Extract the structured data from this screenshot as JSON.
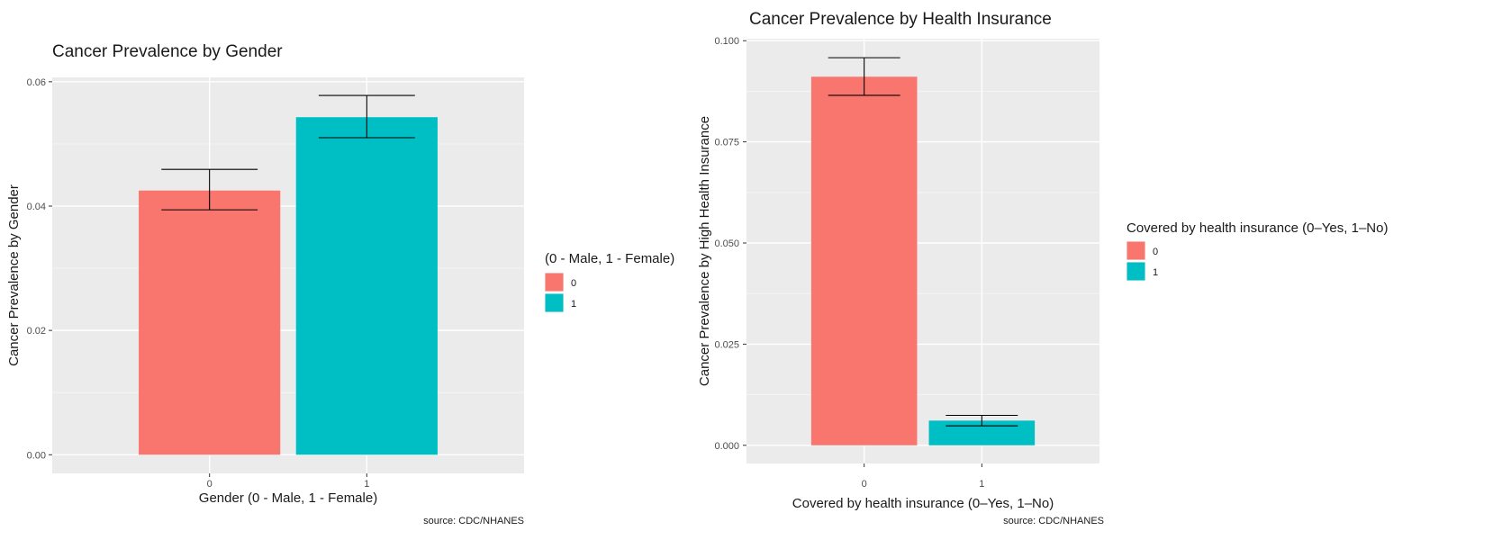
{
  "chart_data": [
    {
      "type": "bar",
      "title": "Cancer Prevalence by Gender",
      "xlabel": "Gender (0 - Male, 1 - Female)",
      "ylabel": "Cancer Prevalence by Gender",
      "categories": [
        "0",
        "1"
      ],
      "values": [
        0.0425,
        0.0543
      ],
      "error_bars": [
        {
          "low": 0.0394,
          "high": 0.0459
        },
        {
          "low": 0.051,
          "high": 0.0578
        }
      ],
      "ylim": [
        -0.003,
        0.0607
      ],
      "yticks": [
        0.0,
        0.02,
        0.04,
        0.06
      ],
      "yticklabels": [
        "0.00",
        "0.02",
        "0.04",
        "0.06"
      ],
      "grid": true,
      "legend": {
        "title": "(0 - Male, 1 - Female)",
        "position": "right",
        "entries": [
          "0",
          "1"
        ]
      },
      "colors": [
        "#F8766D",
        "#00BFC4"
      ],
      "caption": "source: CDC/NHANES"
    },
    {
      "type": "bar",
      "title": "Cancer Prevalence by Health Insurance",
      "xlabel": "Covered by health insurance (0–Yes, 1–No)",
      "ylabel": "Cancer Prevalence by High Health Insurance",
      "categories": [
        "0",
        "1"
      ],
      "values": [
        0.0911,
        0.0061
      ],
      "error_bars": [
        {
          "low": 0.0865,
          "high": 0.0958
        },
        {
          "low": 0.0048,
          "high": 0.0074
        }
      ],
      "ylim": [
        -0.0045,
        0.1005
      ],
      "yticks": [
        0.0,
        0.025,
        0.05,
        0.075,
        0.1
      ],
      "yticklabels": [
        "0.000",
        "0.025",
        "0.050",
        "0.075",
        "0.100"
      ],
      "grid": true,
      "legend": {
        "title": "Covered by health insurance (0–Yes, 1–No)",
        "position": "right",
        "entries": [
          "0",
          "1"
        ]
      },
      "colors": [
        "#F8766D",
        "#00BFC4"
      ],
      "caption": "source: CDC/NHANES"
    }
  ]
}
